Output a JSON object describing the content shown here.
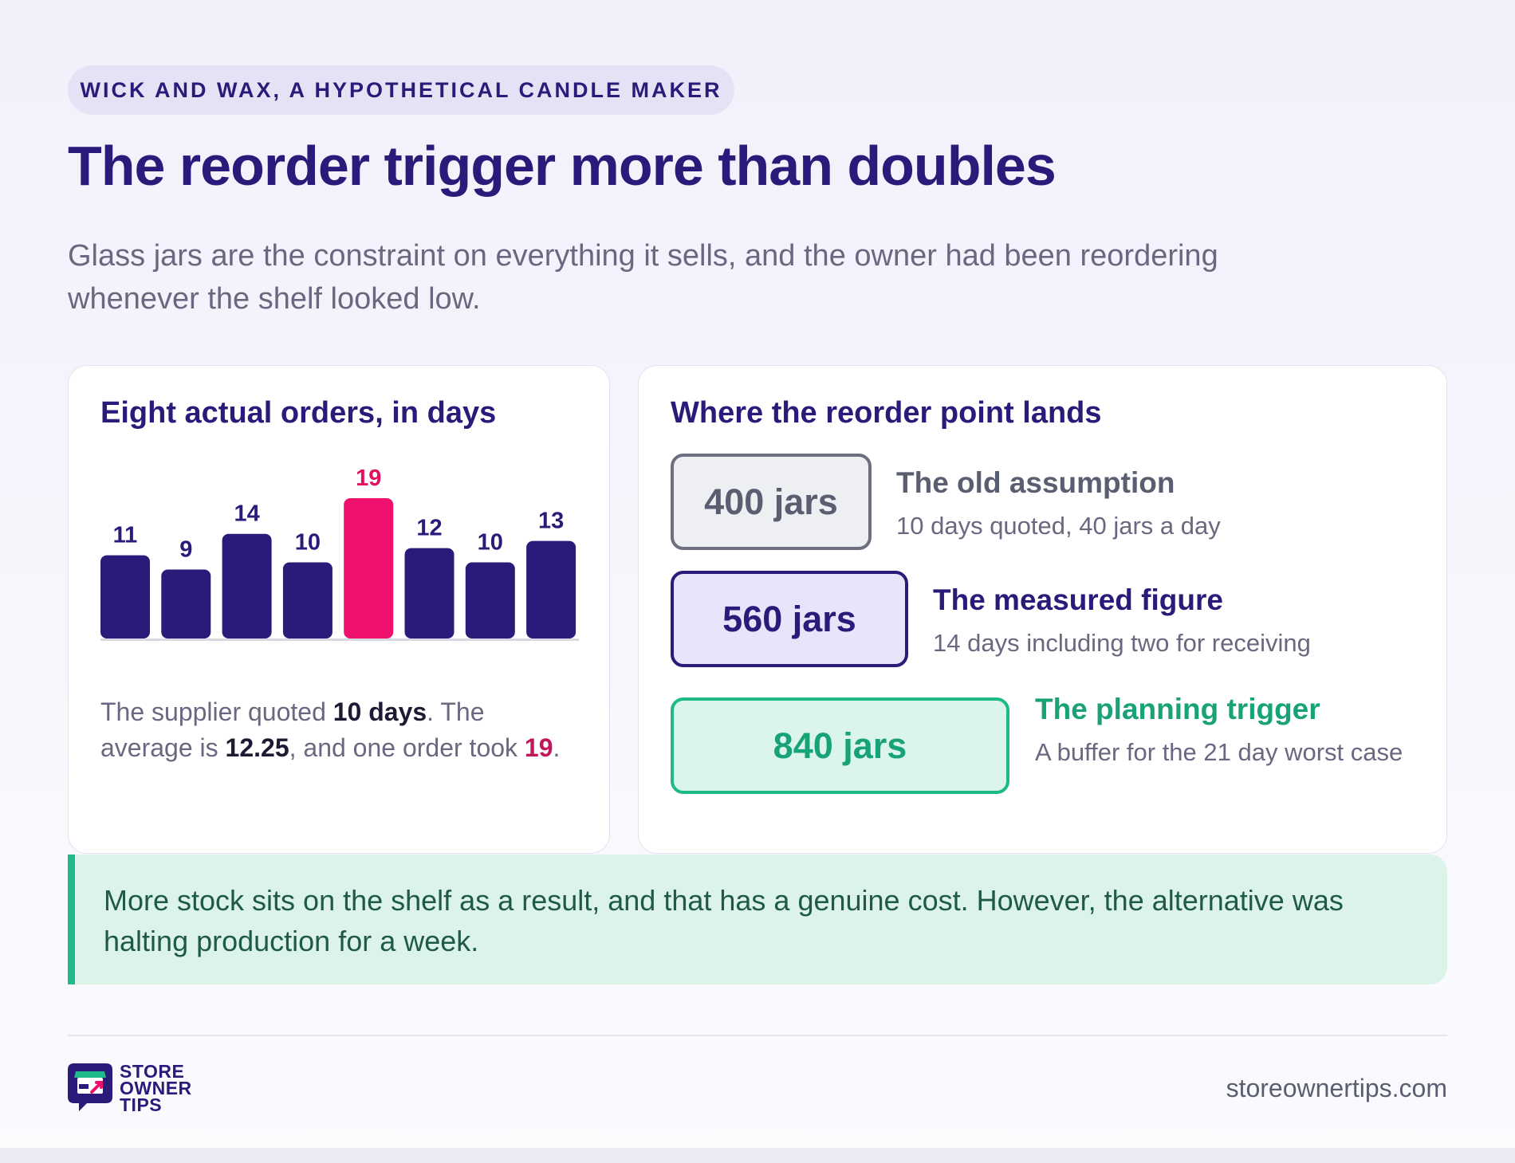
{
  "header": {
    "eyebrow": "WICK AND WAX, A HYPOTHETICAL CANDLE MAKER",
    "title": "The reorder trigger more than doubles",
    "lede": "Glass jars are the constraint on everything it sells, and the owner had been reordering whenever the shelf looked low."
  },
  "left_card": {
    "title": "Eight actual orders, in days",
    "caption": {
      "t1": "The supplier quoted ",
      "b1": "10 days",
      "t2": ". The average is ",
      "b2": "12.25",
      "t3": ", and one order took ",
      "b3": "19",
      "t4": "."
    }
  },
  "chart_data": {
    "type": "bar",
    "title": "Eight actual orders, in days",
    "values": [
      11,
      9,
      14,
      10,
      19,
      12,
      10,
      13
    ],
    "highlight_index": 4,
    "colors": {
      "bar": "#2b1a7a",
      "highlight": "#f0116e",
      "label": "#2b1a7a",
      "highlight_label": "#e5105f",
      "baseline": "#d9d7e2"
    },
    "ylim": [
      0,
      19
    ],
    "grid": false,
    "data_labels": true
  },
  "right_card": {
    "title": "Where the reorder point lands",
    "items": [
      {
        "value": "400 jars",
        "heading": "The old assumption",
        "sub": "10 days quoted, 40 jars a day"
      },
      {
        "value": "560 jars",
        "heading": "The measured figure",
        "sub": "14 days including two for receiving"
      },
      {
        "value": "840 jars",
        "heading": "The planning trigger",
        "sub": "A buffer for the 21 day worst case"
      }
    ]
  },
  "note": "More stock sits on the shelf as a result, and that has a genuine cost. However, the alternative was halting production for a week.",
  "footer": {
    "brand_lines": [
      "STORE",
      "OWNER",
      "TIPS"
    ],
    "logo_icon": "storefront-chat-icon",
    "domain": "storeownertips.com"
  }
}
